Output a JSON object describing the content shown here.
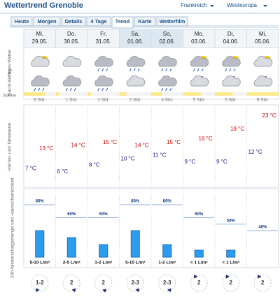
{
  "header": {
    "title": "Wettertrend Grenoble",
    "region": "Frankreich",
    "area": "Westeuropa"
  },
  "tabs": [
    "Heute",
    "Morgen",
    "Details",
    "4 Tage",
    "Trend",
    "Karte",
    "Wetterfilm"
  ],
  "days": [
    {
      "day": "Mi,",
      "date": "29.05."
    },
    {
      "day": "Do,",
      "date": "30.05."
    },
    {
      "day": "Fr,",
      "date": "31.05."
    },
    {
      "day": "Sa,",
      "date": "01.06."
    },
    {
      "day": "So,",
      "date": "02.06."
    },
    {
      "day": "Mo,",
      "date": "03.06."
    },
    {
      "day": "Di,",
      "date": "04.06."
    },
    {
      "day": "Mi,",
      "date": "05.06."
    }
  ],
  "row_labels": {
    "day_weather": "Tages-Wetter",
    "night_weather": "Nacht-Wetter",
    "sun": "Sonne",
    "temps": "Höchst- und Tiefstwerte",
    "precip": "24h-Niederschlagsmenge und -wahrscheinlichkeit"
  },
  "sunshine": [
    {
      "value": 6,
      "label": "6 Std."
    },
    {
      "value": 1,
      "label": "1 Std."
    },
    {
      "value": 1,
      "label": "1 Std."
    },
    {
      "value": 2,
      "label": "2 Std."
    },
    {
      "value": 3,
      "label": "3 Std."
    },
    {
      "value": 5,
      "label": "5 Std."
    },
    {
      "value": 5,
      "label": "5 Std."
    },
    {
      "value": 9,
      "label": "9 Std."
    }
  ],
  "highs": [
    {
      "value": 13,
      "label": "13 °C"
    },
    {
      "value": 14,
      "label": "14 °C"
    },
    {
      "value": 15,
      "label": "15 °C"
    },
    {
      "value": 14,
      "label": "14 °C"
    },
    {
      "value": 15,
      "label": "15 °C"
    },
    {
      "value": 16,
      "label": "16 °C"
    },
    {
      "value": 19,
      "label": "19 °C"
    },
    {
      "value": 23,
      "label": "23 °C"
    }
  ],
  "lows": [
    {
      "value": 7,
      "label": "7 °C"
    },
    {
      "value": 6,
      "label": "6 °C"
    },
    {
      "value": 8,
      "label": "8 °C"
    },
    {
      "value": 10,
      "label": "10 °C"
    },
    {
      "value": 11,
      "label": "11 °C"
    },
    {
      "value": 9,
      "label": "9 °C"
    },
    {
      "value": 9,
      "label": "9 °C"
    },
    {
      "value": 12,
      "label": "12 °C"
    }
  ],
  "precip_probability": [
    {
      "value": 80,
      "label": "80%"
    },
    {
      "value": 60,
      "label": "60%"
    },
    {
      "value": 60,
      "label": "60%"
    },
    {
      "value": 80,
      "label": "80%"
    },
    {
      "value": 80,
      "label": "80%"
    },
    {
      "value": 60,
      "label": "60%"
    },
    {
      "value": 50,
      "label": "50%"
    },
    {
      "value": 40,
      "label": "40%"
    }
  ],
  "precip_amount": [
    "5-10 L/m²",
    "2-5 L/m²",
    "1-2 L/m²",
    "5-10 L/m²",
    "1-2 L/m²",
    "< 1 L/m²",
    "< 1 L/m²",
    null
  ],
  "wind": [
    "1-2",
    "2",
    "2",
    "2-3",
    "2-3",
    "2",
    "2",
    "2"
  ]
}
